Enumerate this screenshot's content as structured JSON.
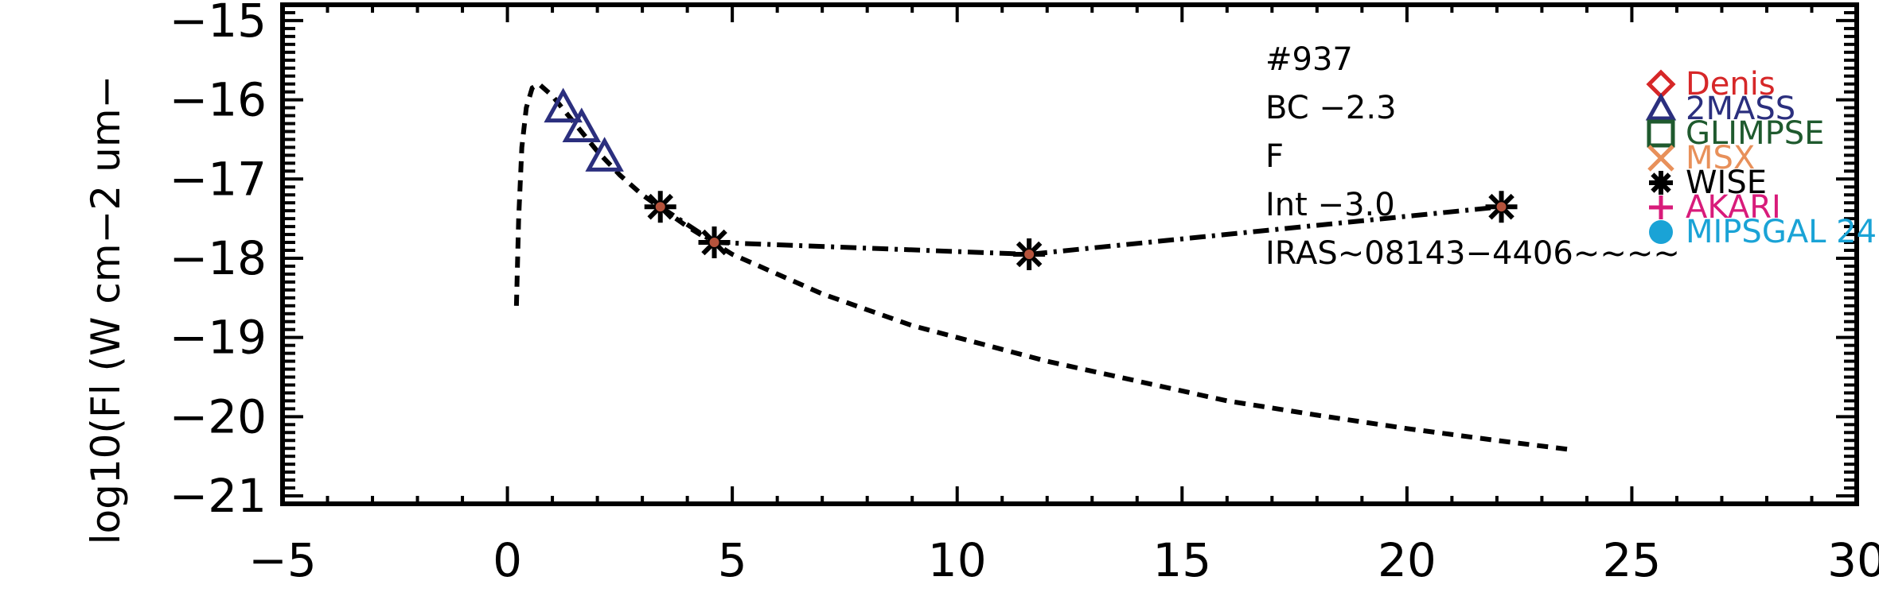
{
  "chart_data": {
    "type": "scatter",
    "title": "",
    "xlabel": "",
    "ylabel": "log10(Fl (W cm−2 um−",
    "xlim": [
      -5,
      30
    ],
    "ylim": [
      -21.1,
      -14.8
    ],
    "x_ticks": [
      -5,
      0,
      5,
      10,
      15,
      20,
      25,
      30
    ],
    "x_tick_labels": [
      "−5",
      "0",
      "5",
      "10",
      "15",
      "20",
      "25",
      "30"
    ],
    "y_ticks": [
      -21,
      -20,
      -19,
      -18,
      -17,
      -16,
      -15
    ],
    "y_tick_labels": [
      "−21",
      "−20",
      "−19",
      "−18",
      "−17",
      "−16",
      "−15"
    ],
    "annotations": [
      "#937",
      "BC −2.3",
      "F",
      "Int −3.0",
      "IRAS~08143−4406~~~~"
    ],
    "legend_position": "top-right",
    "legend": [
      {
        "name": "Denis",
        "marker": "diamond",
        "color": "#d62728"
      },
      {
        "name": "2MASS",
        "marker": "triangle",
        "color": "#2b2f7e"
      },
      {
        "name": "GLIMPSE",
        "marker": "square",
        "color": "#1f5a2e"
      },
      {
        "name": "MSX",
        "marker": "x",
        "color": "#e8905a"
      },
      {
        "name": "WISE",
        "marker": "asterisk",
        "color": "#000000"
      },
      {
        "name": "AKARI",
        "marker": "plus",
        "color": "#d81b7a"
      },
      {
        "name": "MIPSGAL 24",
        "marker": "circle",
        "color": "#1aa3d6"
      }
    ],
    "series": [
      {
        "marker": "triangle",
        "color": "#2b2f7e",
        "points": [
          {
            "x": 1.24,
            "y": -16.1
          },
          {
            "x": 1.65,
            "y": -16.35
          },
          {
            "x": 2.16,
            "y": -16.72
          }
        ]
      },
      {
        "marker": "asterisk",
        "color": "#000000",
        "points": [
          {
            "x": 3.4,
            "y": -17.35
          },
          {
            "x": 4.6,
            "y": -17.8
          },
          {
            "x": 11.6,
            "y": -17.95
          },
          {
            "x": 22.1,
            "y": -17.35
          }
        ]
      },
      {
        "line": "dashed",
        "color": "#000000",
        "points": [
          {
            "x": 0.2,
            "y": -18.6
          },
          {
            "x": 0.25,
            "y": -17.5
          },
          {
            "x": 0.32,
            "y": -16.6
          },
          {
            "x": 0.42,
            "y": -16.1
          },
          {
            "x": 0.55,
            "y": -15.85
          },
          {
            "x": 0.7,
            "y": -15.8
          },
          {
            "x": 1.0,
            "y": -15.95
          },
          {
            "x": 1.5,
            "y": -16.3
          },
          {
            "x": 2.0,
            "y": -16.65
          },
          {
            "x": 2.5,
            "y": -16.95
          },
          {
            "x": 3.0,
            "y": -17.2
          },
          {
            "x": 4.0,
            "y": -17.6
          },
          {
            "x": 5.0,
            "y": -17.95
          },
          {
            "x": 6.0,
            "y": -18.2
          },
          {
            "x": 7.0,
            "y": -18.45
          },
          {
            "x": 8.0,
            "y": -18.65
          },
          {
            "x": 9.0,
            "y": -18.85
          },
          {
            "x": 10.0,
            "y": -19.0
          },
          {
            "x": 12.0,
            "y": -19.3
          },
          {
            "x": 14.0,
            "y": -19.55
          },
          {
            "x": 16.0,
            "y": -19.8
          },
          {
            "x": 18.0,
            "y": -19.98
          },
          {
            "x": 20.0,
            "y": -20.15
          },
          {
            "x": 22.0,
            "y": -20.3
          },
          {
            "x": 23.7,
            "y": -20.42
          }
        ]
      },
      {
        "line": "dash-dot",
        "color": "#000000",
        "points": [
          {
            "x": 3.4,
            "y": -17.35
          },
          {
            "x": 4.6,
            "y": -17.8
          },
          {
            "x": 11.6,
            "y": -17.95
          },
          {
            "x": 22.1,
            "y": -17.35
          }
        ]
      }
    ]
  }
}
